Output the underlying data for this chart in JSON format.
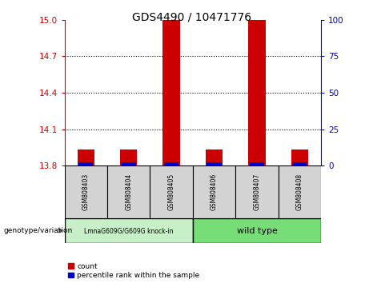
{
  "title": "GDS4490 / 10471776",
  "samples": [
    "GSM808403",
    "GSM808404",
    "GSM808405",
    "GSM808406",
    "GSM808407",
    "GSM808408"
  ],
  "group1_label": "LmnaG609G/G609G knock-in",
  "group2_label": "wild type",
  "group1_indices": [
    0,
    1,
    2
  ],
  "group2_indices": [
    3,
    4,
    5
  ],
  "ylim_left": [
    13.8,
    15.0
  ],
  "yticks_left": [
    13.8,
    14.1,
    14.4,
    14.7,
    15.0
  ],
  "yticks_right": [
    0,
    25,
    50,
    75,
    100
  ],
  "bar_base": 13.8,
  "red_heights": [
    13.93,
    13.93,
    15.0,
    13.93,
    15.0,
    13.93
  ],
  "blue_heights": [
    13.825,
    13.825,
    13.825,
    13.825,
    13.825,
    13.825
  ],
  "red_color": "#CC0000",
  "blue_color": "#0000CC",
  "bar_width": 0.4,
  "label_color_left": "#CC0000",
  "label_color_right": "#0000BB",
  "sample_bg": "#D3D3D3",
  "group1_bg": "#C8F0C8",
  "group2_bg": "#77DD77",
  "genotype_label": "genotype/variation",
  "legend_count": "count",
  "legend_percentile": "percentile rank within the sample",
  "grid_lines": [
    14.1,
    14.4,
    14.7
  ]
}
